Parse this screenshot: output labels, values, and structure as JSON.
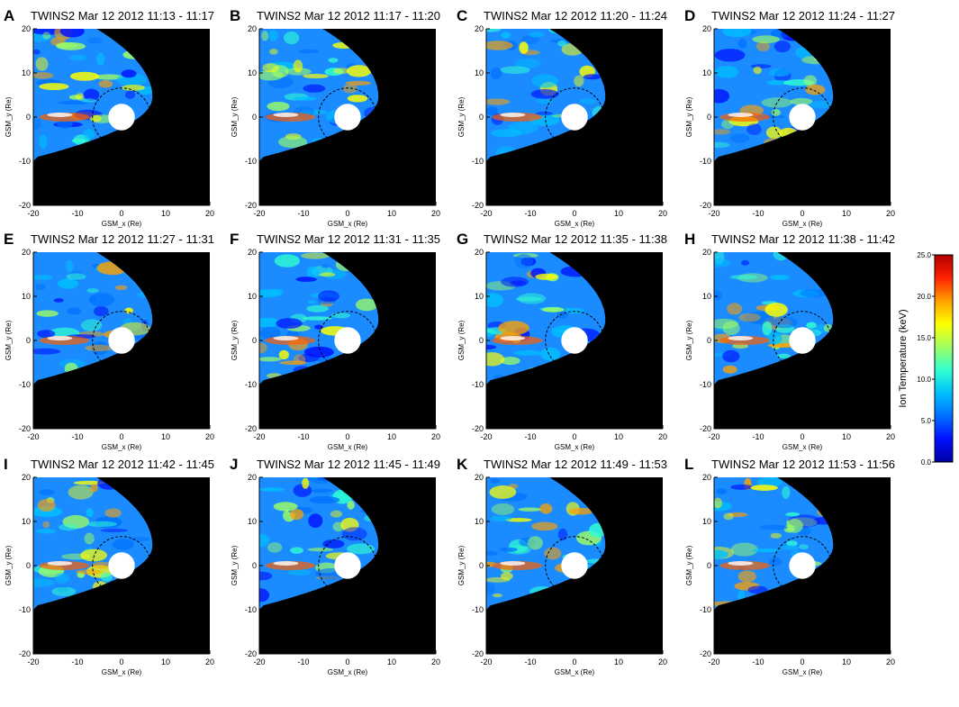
{
  "colors": {
    "background": "#000000",
    "earth": "#ffffff",
    "colormap": [
      "#0000a0",
      "#0010ff",
      "#0070ff",
      "#00c0ff",
      "#30ffd0",
      "#a0ff60",
      "#ffff00",
      "#ffa000",
      "#ff2000",
      "#b00000"
    ]
  },
  "chart_data": {
    "type": "heatmap",
    "panels": [
      {
        "label": "A",
        "title": "TWINS2  Mar 12 2012 11:13 - 11:17",
        "xlabel": "GSM_x (Re)",
        "ylabel": "GSM_y (Re)",
        "xticks": [
          "-20",
          "-10",
          "0",
          "10",
          "20"
        ],
        "yticks": [
          "20",
          "10",
          "0",
          "-10",
          "-20"
        ],
        "xlim": [
          -20,
          20
        ],
        "ylim": [
          -20,
          20
        ]
      },
      {
        "label": "B",
        "title": "TWINS2  Mar 12 2012 11:17 - 11:20",
        "xlabel": "GSM_x (Re)",
        "ylabel": "GSM_y (Re)",
        "xticks": [
          "-20",
          "-10",
          "0",
          "10",
          "20"
        ],
        "yticks": [
          "20",
          "10",
          "0",
          "-10",
          "-20"
        ],
        "xlim": [
          -20,
          20
        ],
        "ylim": [
          -20,
          20
        ]
      },
      {
        "label": "C",
        "title": "TWINS2  Mar 12 2012 11:20 - 11:24",
        "xlabel": "GSM_x (Re)",
        "ylabel": "GSM_y (Re)",
        "xticks": [
          "-20",
          "-10",
          "0",
          "10",
          "20"
        ],
        "yticks": [
          "20",
          "10",
          "0",
          "-10",
          "-20"
        ],
        "xlim": [
          -20,
          20
        ],
        "ylim": [
          -20,
          20
        ]
      },
      {
        "label": "D",
        "title": "TWINS2  Mar 12 2012 11:24 - 11:27",
        "xlabel": "GSM_x (Re)",
        "ylabel": "GSM_y (Re)",
        "xticks": [
          "-20",
          "-10",
          "0",
          "10",
          "20"
        ],
        "yticks": [
          "20",
          "10",
          "0",
          "-10",
          "-20"
        ],
        "xlim": [
          -20,
          20
        ],
        "ylim": [
          -20,
          20
        ]
      },
      {
        "label": "E",
        "title": "TWINS2  Mar 12 2012 11:27 - 11:31",
        "xlabel": "GSM_x (Re)",
        "ylabel": "GSM_y (Re)",
        "xticks": [
          "-20",
          "-10",
          "0",
          "10",
          "20"
        ],
        "yticks": [
          "20",
          "10",
          "0",
          "-10",
          "-20"
        ],
        "xlim": [
          -20,
          20
        ],
        "ylim": [
          -20,
          20
        ]
      },
      {
        "label": "F",
        "title": "TWINS2  Mar 12 2012 11:31 - 11:35",
        "xlabel": "GSM_x (Re)",
        "ylabel": "GSM_y (Re)",
        "xticks": [
          "-20",
          "-10",
          "0",
          "10",
          "20"
        ],
        "yticks": [
          "20",
          "10",
          "0",
          "-10",
          "-20"
        ],
        "xlim": [
          -20,
          20
        ],
        "ylim": [
          -20,
          20
        ]
      },
      {
        "label": "G",
        "title": "TWINS2  Mar 12 2012 11:35 - 11:38",
        "xlabel": "GSM_x (Re)",
        "ylabel": "GSM_y (Re)",
        "xticks": [
          "-20",
          "-10",
          "0",
          "10",
          "20"
        ],
        "yticks": [
          "20",
          "10",
          "0",
          "-10",
          "-20"
        ],
        "xlim": [
          -20,
          20
        ],
        "ylim": [
          -20,
          20
        ]
      },
      {
        "label": "H",
        "title": "TWINS2  Mar 12 2012 11:38 - 11:42",
        "xlabel": "GSM_x (Re)",
        "ylabel": "GSM_y (Re)",
        "xticks": [
          "-20",
          "-10",
          "0",
          "10",
          "20"
        ],
        "yticks": [
          "20",
          "10",
          "0",
          "-10",
          "-20"
        ],
        "xlim": [
          -20,
          20
        ],
        "ylim": [
          -20,
          20
        ]
      },
      {
        "label": "I",
        "title": "TWINS2  Mar 12 2012 11:42 - 11:45",
        "xlabel": "GSM_x (Re)",
        "ylabel": "GSM_y (Re)",
        "xticks": [
          "-20",
          "-10",
          "0",
          "10",
          "20"
        ],
        "yticks": [
          "20",
          "10",
          "0",
          "-10",
          "-20"
        ],
        "xlim": [
          -20,
          20
        ],
        "ylim": [
          -20,
          20
        ]
      },
      {
        "label": "J",
        "title": "TWINS2  Mar 12 2012 11:45 - 11:49",
        "xlabel": "GSM_x (Re)",
        "ylabel": "GSM_y (Re)",
        "xticks": [
          "-20",
          "-10",
          "0",
          "10",
          "20"
        ],
        "yticks": [
          "20",
          "10",
          "0",
          "-10",
          "-20"
        ],
        "xlim": [
          -20,
          20
        ],
        "ylim": [
          -20,
          20
        ]
      },
      {
        "label": "K",
        "title": "TWINS2  Mar 12 2012 11:49 - 11:53",
        "xlabel": "GSM_x (Re)",
        "ylabel": "GSM_y (Re)",
        "xticks": [
          "-20",
          "-10",
          "0",
          "10",
          "20"
        ],
        "yticks": [
          "20",
          "10",
          "0",
          "-10",
          "-20"
        ],
        "xlim": [
          -20,
          20
        ],
        "ylim": [
          -20,
          20
        ]
      },
      {
        "label": "L",
        "title": "TWINS2  Mar 12 2012 11:53 - 11:56",
        "xlabel": "GSM_x (Re)",
        "ylabel": "GSM_y (Re)",
        "xticks": [
          "-20",
          "-10",
          "0",
          "10",
          "20"
        ],
        "yticks": [
          "20",
          "10",
          "0",
          "-10",
          "-20"
        ],
        "xlim": [
          -20,
          20
        ],
        "ylim": [
          -20,
          20
        ]
      }
    ],
    "colorbar": {
      "label": "Ion Temperature (keV)",
      "ticks": [
        "25.0",
        "20.0",
        "15.0",
        "10.0",
        "5.0",
        "0.0"
      ],
      "range": [
        0,
        25
      ]
    }
  }
}
